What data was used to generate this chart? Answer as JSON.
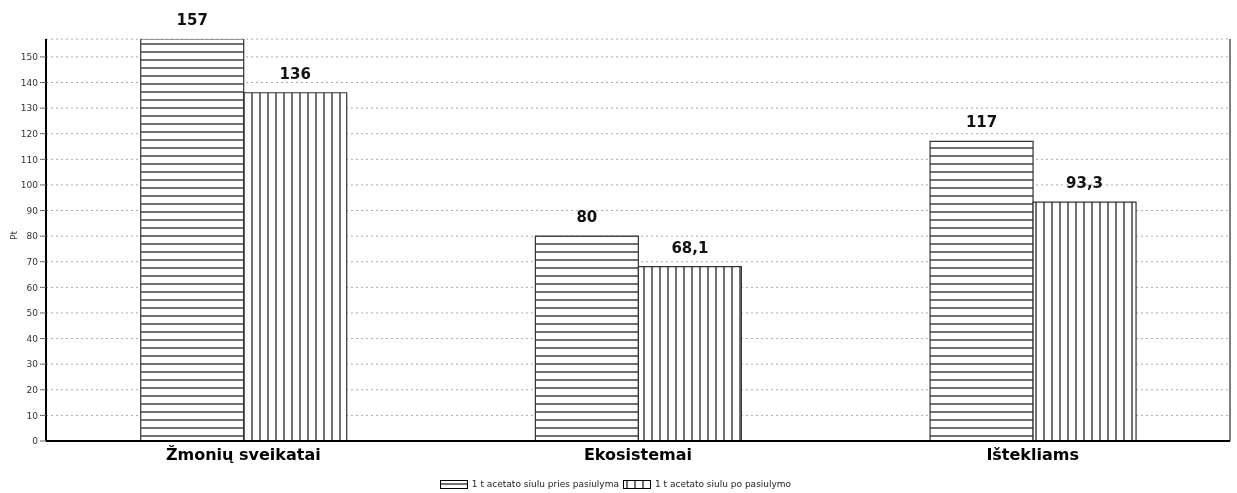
{
  "chart_data": {
    "type": "bar",
    "ylabel": "Pt",
    "categories": [
      "Žmonių sveikatai",
      "Ekosistemai",
      "Ištekliams"
    ],
    "series": [
      {
        "name": "1 t acetato siulu pries pasiulyma",
        "color": "#333333",
        "values": [
          157,
          80,
          117
        ],
        "value_labels": [
          "157",
          "80",
          "117"
        ]
      },
      {
        "name": "1 t acetato siulu po pasiulymo",
        "color": "#333333",
        "values": [
          136,
          68.1,
          93.3
        ],
        "value_labels": [
          "136",
          "68,1",
          "93,3"
        ]
      }
    ],
    "ylim": [
      0,
      157
    ],
    "yticks": [
      0,
      10,
      20,
      30,
      40,
      50,
      60,
      70,
      80,
      90,
      100,
      110,
      120,
      130,
      140,
      150
    ],
    "grid": "y",
    "legend": "bottom"
  }
}
